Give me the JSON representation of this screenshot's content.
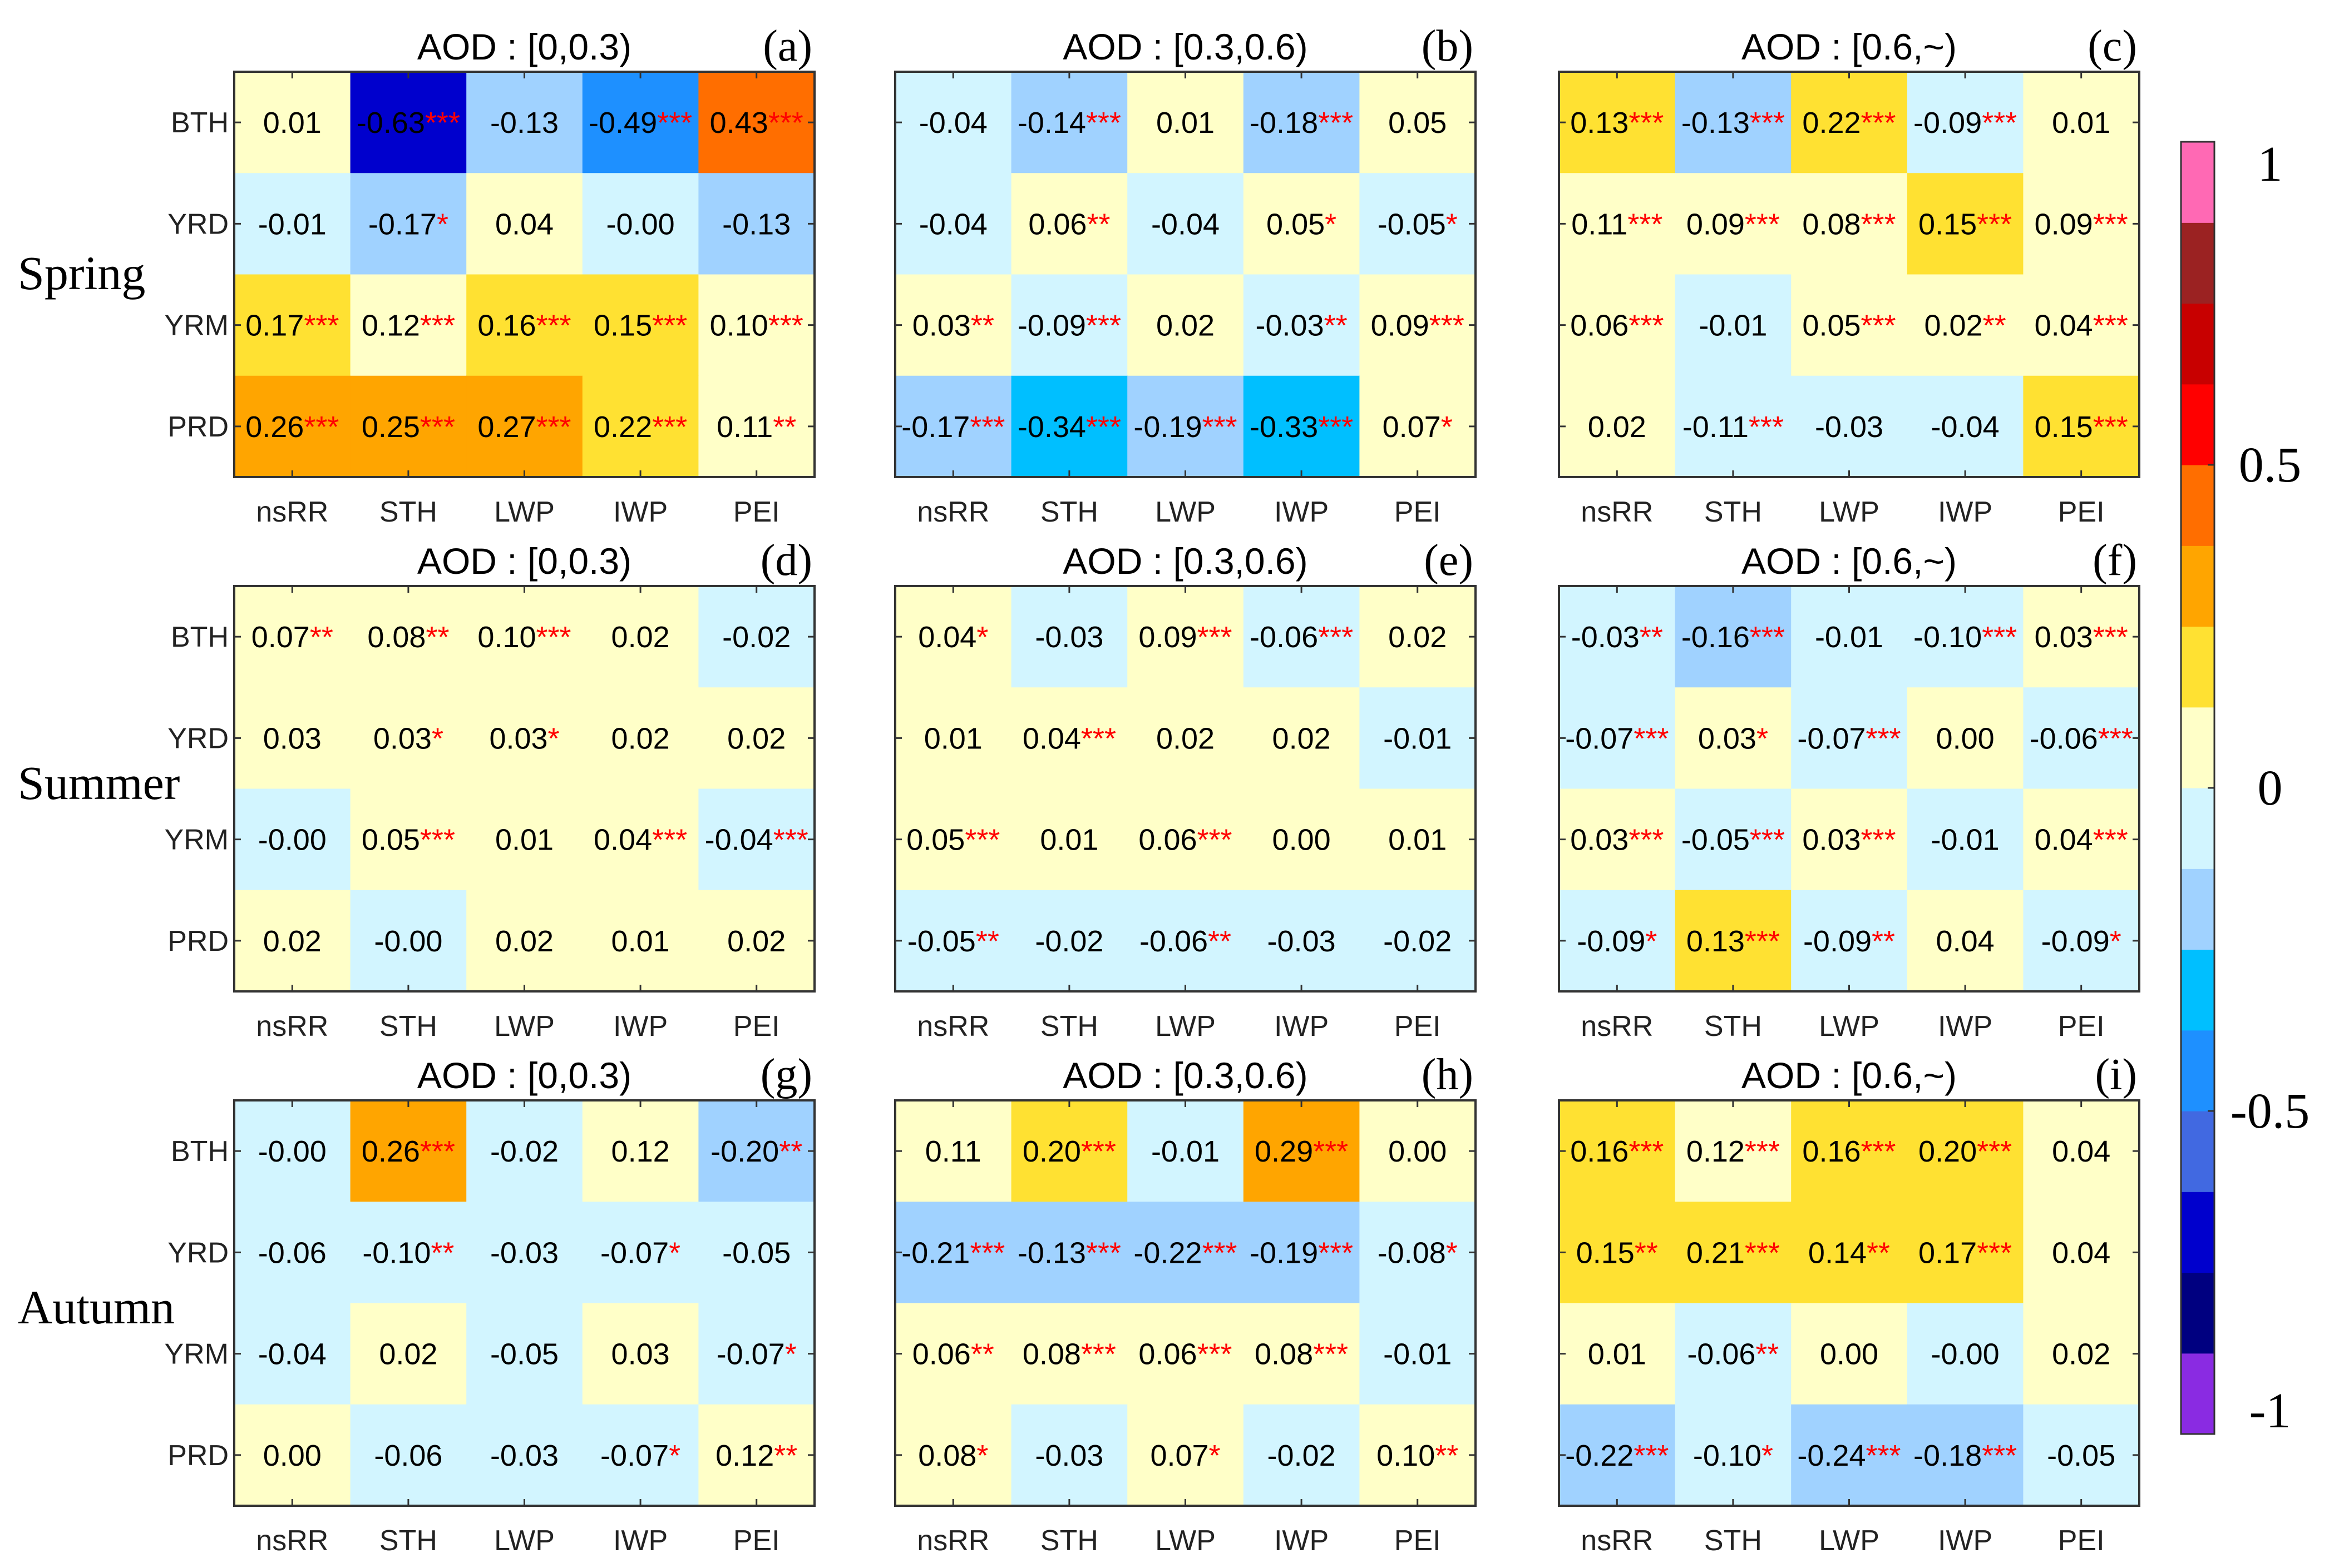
{
  "chart_data": {
    "type": "heatmap",
    "row_labels": [
      "BTH",
      "YRD",
      "YRM",
      "PRD"
    ],
    "col_labels": [
      "nsRR",
      "STH",
      "LWP",
      "IWP",
      "PEI"
    ],
    "seasons": [
      "Spring",
      "Summer",
      "Autumn"
    ],
    "colorbar": {
      "range": [
        -1,
        1
      ],
      "step": 0.125,
      "tick_labels": [
        "1",
        "0.5",
        "0",
        "-0.5",
        "-1"
      ],
      "tick_values": [
        1,
        0.5,
        0,
        -0.5,
        -1
      ],
      "colors_low_to_high": [
        "#8A2BE2",
        "#000080",
        "#0000CD",
        "#4169E1",
        "#1E90FF",
        "#00BFFF",
        "#A0D2FF",
        "#D2F5FF",
        "#FFFFC8",
        "#FFE132",
        "#FFA500",
        "#FF6E00",
        "#FF0000",
        "#C80000",
        "#9B2222",
        "#FF69B4"
      ]
    },
    "significance_color": "#FF0000",
    "panels": [
      {
        "letter": "(a)",
        "title": "AOD : [0,0.3)",
        "cells": [
          [
            "0.01",
            "-0.63***",
            "-0.13",
            "-0.49***",
            "0.43***"
          ],
          [
            "-0.01",
            "-0.17*",
            "0.04",
            "-0.00",
            "-0.13"
          ],
          [
            "0.17***",
            "0.12***",
            "0.16***",
            "0.15***",
            "0.10***"
          ],
          [
            "0.26***",
            "0.25***",
            "0.27***",
            "0.22***",
            "0.11**"
          ]
        ]
      },
      {
        "letter": "(b)",
        "title": "AOD : [0.3,0.6)",
        "cells": [
          [
            "-0.04",
            "-0.14***",
            "0.01",
            "-0.18***",
            "0.05"
          ],
          [
            "-0.04",
            "0.06**",
            "-0.04",
            "0.05*",
            "-0.05*"
          ],
          [
            "0.03**",
            "-0.09***",
            "0.02",
            "-0.03**",
            "0.09***"
          ],
          [
            "-0.17***",
            "-0.34***",
            "-0.19***",
            "-0.33***",
            "0.07*"
          ]
        ]
      },
      {
        "letter": "(c)",
        "title": "AOD : [0.6,~)",
        "cells": [
          [
            "0.13***",
            "-0.13***",
            "0.22***",
            "-0.09***",
            "0.01"
          ],
          [
            "0.11***",
            "0.09***",
            "0.08***",
            "0.15***",
            "0.09***"
          ],
          [
            "0.06***",
            "-0.01",
            "0.05***",
            "0.02**",
            "0.04***"
          ],
          [
            "0.02",
            "-0.11***",
            "-0.03",
            "-0.04",
            "0.15***"
          ]
        ]
      },
      {
        "letter": "(d)",
        "title": "AOD : [0,0.3)",
        "cells": [
          [
            "0.07**",
            "0.08**",
            "0.10***",
            "0.02",
            "-0.02"
          ],
          [
            "0.03",
            "0.03*",
            "0.03*",
            "0.02",
            "0.02"
          ],
          [
            "-0.00",
            "0.05***",
            "0.01",
            "0.04***",
            "-0.04***"
          ],
          [
            "0.02",
            "-0.00",
            "0.02",
            "0.01",
            "0.02"
          ]
        ]
      },
      {
        "letter": "(e)",
        "title": "AOD : [0.3,0.6)",
        "cells": [
          [
            "0.04*",
            "-0.03",
            "0.09***",
            "-0.06***",
            "0.02"
          ],
          [
            "0.01",
            "0.04***",
            "0.02",
            "0.02",
            "-0.01"
          ],
          [
            "0.05***",
            "0.01",
            "0.06***",
            "0.00",
            "0.01"
          ],
          [
            "-0.05**",
            "-0.02",
            "-0.06**",
            "-0.03",
            "-0.02"
          ]
        ]
      },
      {
        "letter": "(f)",
        "title": "AOD : [0.6,~)",
        "cells": [
          [
            "-0.03**",
            "-0.16***",
            "-0.01",
            "-0.10***",
            "0.03***"
          ],
          [
            "-0.07***",
            "0.03*",
            "-0.07***",
            "0.00",
            "-0.06***"
          ],
          [
            "0.03***",
            "-0.05***",
            "0.03***",
            "-0.01",
            "0.04***"
          ],
          [
            "-0.09*",
            "0.13***",
            "-0.09**",
            "0.04",
            "-0.09*"
          ]
        ]
      },
      {
        "letter": "(g)",
        "title": "AOD : [0,0.3)",
        "cells": [
          [
            "-0.00",
            "0.26***",
            "-0.02",
            "0.12",
            "-0.20**"
          ],
          [
            "-0.06",
            "-0.10**",
            "-0.03",
            "-0.07*",
            "-0.05"
          ],
          [
            "-0.04",
            "0.02",
            "-0.05",
            "0.03",
            "-0.07*"
          ],
          [
            "0.00",
            "-0.06",
            "-0.03",
            "-0.07*",
            "0.12**"
          ]
        ]
      },
      {
        "letter": "(h)",
        "title": "AOD : [0.3,0.6)",
        "cells": [
          [
            "0.11",
            "0.20***",
            "-0.01",
            "0.29***",
            "0.00"
          ],
          [
            "-0.21***",
            "-0.13***",
            "-0.22***",
            "-0.19***",
            "-0.08*"
          ],
          [
            "0.06**",
            "0.08***",
            "0.06***",
            "0.08***",
            "-0.01"
          ],
          [
            "0.08*",
            "-0.03",
            "0.07*",
            "-0.02",
            "0.10**"
          ]
        ]
      },
      {
        "letter": "(i)",
        "title": "AOD : [0.6,~)",
        "cells": [
          [
            "0.16***",
            "0.12***",
            "0.16***",
            "0.20***",
            "0.04"
          ],
          [
            "0.15**",
            "0.21***",
            "0.14**",
            "0.17***",
            "0.04"
          ],
          [
            "0.01",
            "-0.06**",
            "0.00",
            "-0.00",
            "0.02"
          ],
          [
            "-0.22***",
            "-0.10*",
            "-0.24***",
            "-0.18***",
            "-0.05"
          ]
        ]
      }
    ]
  }
}
